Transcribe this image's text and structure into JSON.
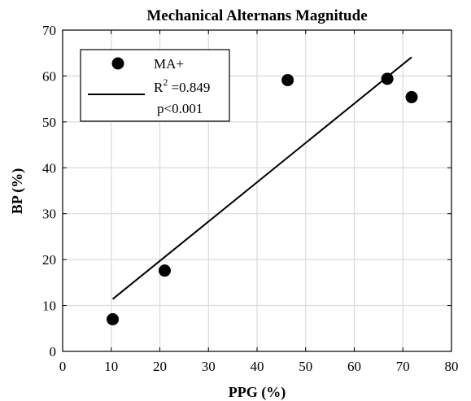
{
  "chart_data": {
    "type": "scatter",
    "title": "Mechanical Alternans Magnitude",
    "xlabel": "PPG (%)",
    "ylabel": "BP (%)",
    "xlim": [
      0,
      80
    ],
    "ylim": [
      0,
      70
    ],
    "xticks": [
      0,
      10,
      20,
      30,
      40,
      50,
      60,
      70,
      80
    ],
    "yticks": [
      0,
      10,
      20,
      30,
      40,
      50,
      60,
      70
    ],
    "grid": true,
    "legend_position": "top-left",
    "series": [
      {
        "name": "MA+",
        "kind": "scatter",
        "color": "#000000",
        "points": [
          {
            "x": 10.3,
            "y": 7.0
          },
          {
            "x": 21.0,
            "y": 17.6
          },
          {
            "x": 46.3,
            "y": 59.1
          },
          {
            "x": 66.8,
            "y": 59.4
          },
          {
            "x": 71.8,
            "y": 55.4
          }
        ]
      }
    ],
    "fit_line": {
      "color": "#000000",
      "x": [
        10.3,
        71.8
      ],
      "y": [
        11.4,
        64.1
      ]
    },
    "legend": {
      "marker_label": "MA+",
      "r2_prefix": "R",
      "r2_exponent": "2",
      "r2_value": " =0.849",
      "p_value": "p<0.001"
    }
  }
}
